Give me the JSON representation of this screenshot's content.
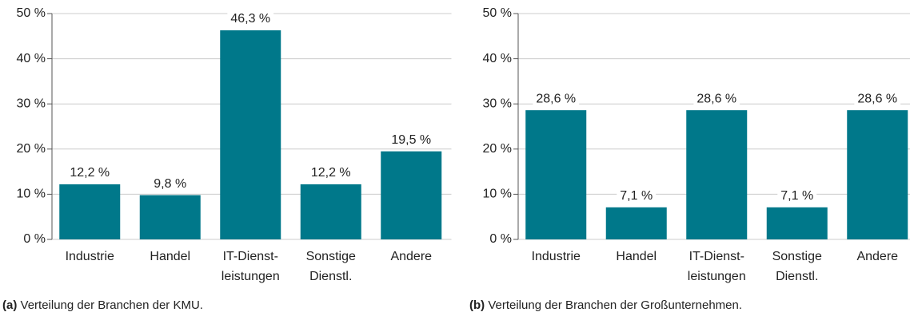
{
  "chart_data": [
    {
      "type": "bar",
      "color": "#00788a",
      "grid": true,
      "categories": [
        "Industrie",
        "Handel",
        [
          "IT-Dienst-",
          "leistungen"
        ],
        [
          "Sonstige",
          "Dienstl."
        ],
        "Andere"
      ],
      "values": [
        12.2,
        9.8,
        46.3,
        12.2,
        19.5
      ],
      "value_labels": [
        "12,2 %",
        "9,8 %",
        "46,3 %",
        "12,2 %",
        "19,5 %"
      ],
      "ylim": [
        0,
        50
      ],
      "yticks": [
        {
          "value": 0,
          "label": "0 %"
        },
        {
          "value": 10,
          "label": "10 %"
        },
        {
          "value": 20,
          "label": "20 %"
        },
        {
          "value": 30,
          "label": "30 %"
        },
        {
          "value": 40,
          "label": "40 %"
        },
        {
          "value": 50,
          "label": "50 %"
        }
      ],
      "caption": {
        "label": "(a)",
        "text": "Verteilung der Branchen der KMU."
      }
    },
    {
      "type": "bar",
      "color": "#00788a",
      "grid": true,
      "categories": [
        "Industrie",
        "Handel",
        [
          "IT-Dienst-",
          "leistungen"
        ],
        [
          "Sonstige",
          "Dienstl."
        ],
        "Andere"
      ],
      "values": [
        28.6,
        7.1,
        28.6,
        7.1,
        28.6
      ],
      "value_labels": [
        "28,6 %",
        "7,1 %",
        "28,6 %",
        "7,1 %",
        "28,6 %"
      ],
      "ylim": [
        0,
        50
      ],
      "yticks": [
        {
          "value": 0,
          "label": "0 %"
        },
        {
          "value": 10,
          "label": "10 %"
        },
        {
          "value": 20,
          "label": "20 %"
        },
        {
          "value": 30,
          "label": "30 %"
        },
        {
          "value": 40,
          "label": "40 %"
        },
        {
          "value": 50,
          "label": "50 %"
        }
      ],
      "caption": {
        "label": "(b)",
        "text": "Verteilung der Branchen der Großunternehmen."
      }
    }
  ]
}
